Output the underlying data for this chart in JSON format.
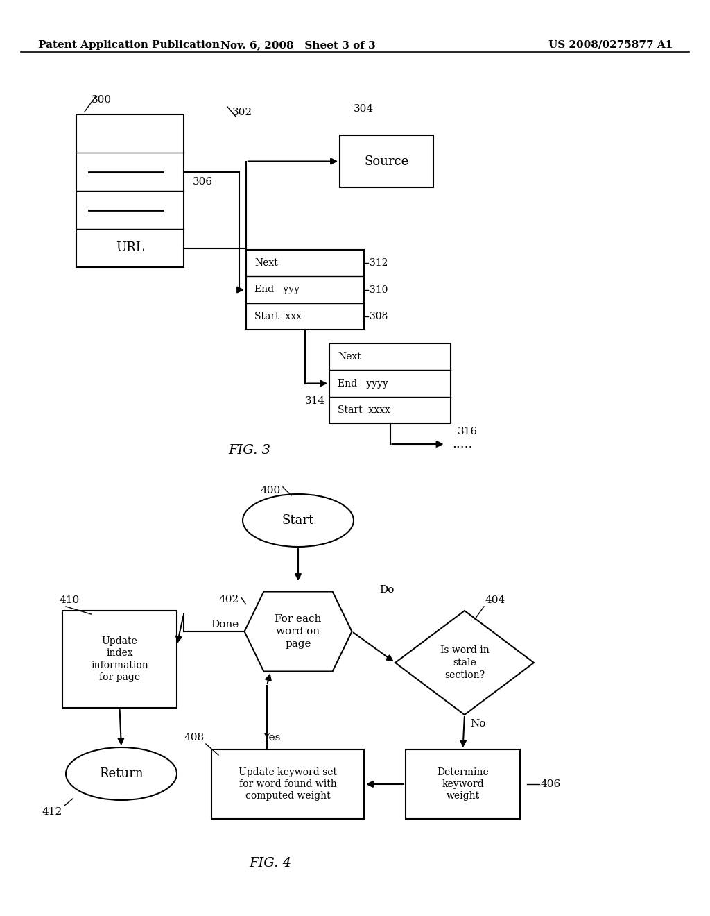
{
  "header_left": "Patent Application Publication",
  "header_mid": "Nov. 6, 2008   Sheet 3 of 3",
  "header_right": "US 2008/0275877 A1",
  "fig3_label": "FIG. 3",
  "fig4_label": "FIG. 4",
  "background_color": "#ffffff",
  "line_color": "#000000",
  "text_color": "#000000"
}
